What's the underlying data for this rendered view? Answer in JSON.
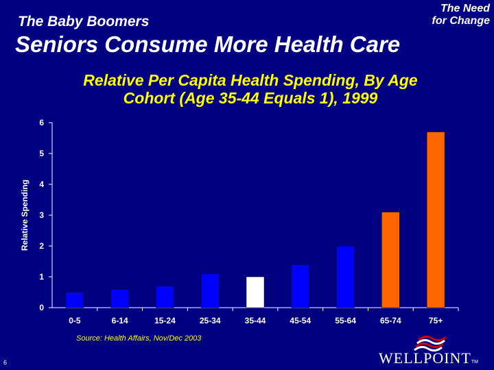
{
  "header": {
    "section": "The Baby Boomers",
    "corner_line1": "The Need",
    "corner_line2": "for Change",
    "title": "Seniors Consume More Health Care"
  },
  "chart_data": {
    "type": "bar",
    "title_line1": "Relative Per Capita Health Spending, By Age",
    "title_line2": "Cohort (Age 35-44 Equals 1), 1999",
    "xlabel": "",
    "ylabel": "Relative Spending",
    "ylim": [
      0,
      6
    ],
    "yticks": [
      "0",
      "1",
      "2",
      "3",
      "4",
      "5",
      "6"
    ],
    "categories": [
      "0-5",
      "6-14",
      "15-24",
      "25-34",
      "35-44",
      "45-54",
      "55-64",
      "65-74",
      "75+"
    ],
    "values": [
      0.5,
      0.6,
      0.7,
      1.1,
      1.0,
      1.4,
      2.0,
      3.1,
      5.7
    ],
    "bar_colors": [
      "#0000ff",
      "#0000ff",
      "#0000ff",
      "#0000ff",
      "#ffffff",
      "#0000ff",
      "#0000ff",
      "#ff6600",
      "#ff6600"
    ],
    "grid": false,
    "legend": "none"
  },
  "footer": {
    "source": "Source: Health Affairs, Nov/Dec 2003",
    "page": "6",
    "logo_text": "WELLPOINT",
    "logo_tm": "TM"
  }
}
